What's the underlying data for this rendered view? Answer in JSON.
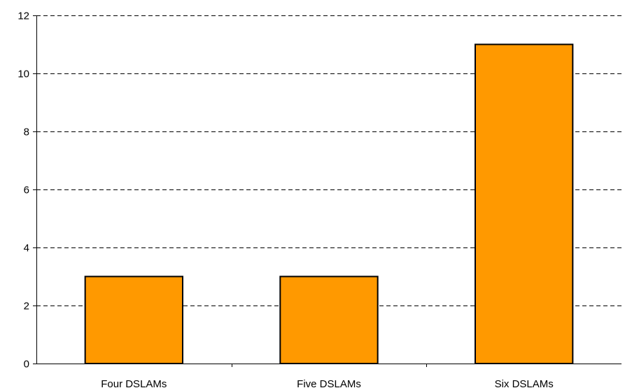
{
  "chart_data": {
    "type": "bar",
    "title": "",
    "xlabel": "",
    "ylabel": "",
    "categories": [
      "Four DSLAMs",
      "Five DSLAMs",
      "Six DSLAMs"
    ],
    "values": [
      3,
      3,
      11
    ],
    "ylim": [
      0,
      12
    ],
    "yticks": [
      0,
      2,
      4,
      6,
      8,
      10,
      12
    ],
    "grid": "horizontal-dashed",
    "legend": "none",
    "bar_color": "#FF9900"
  }
}
